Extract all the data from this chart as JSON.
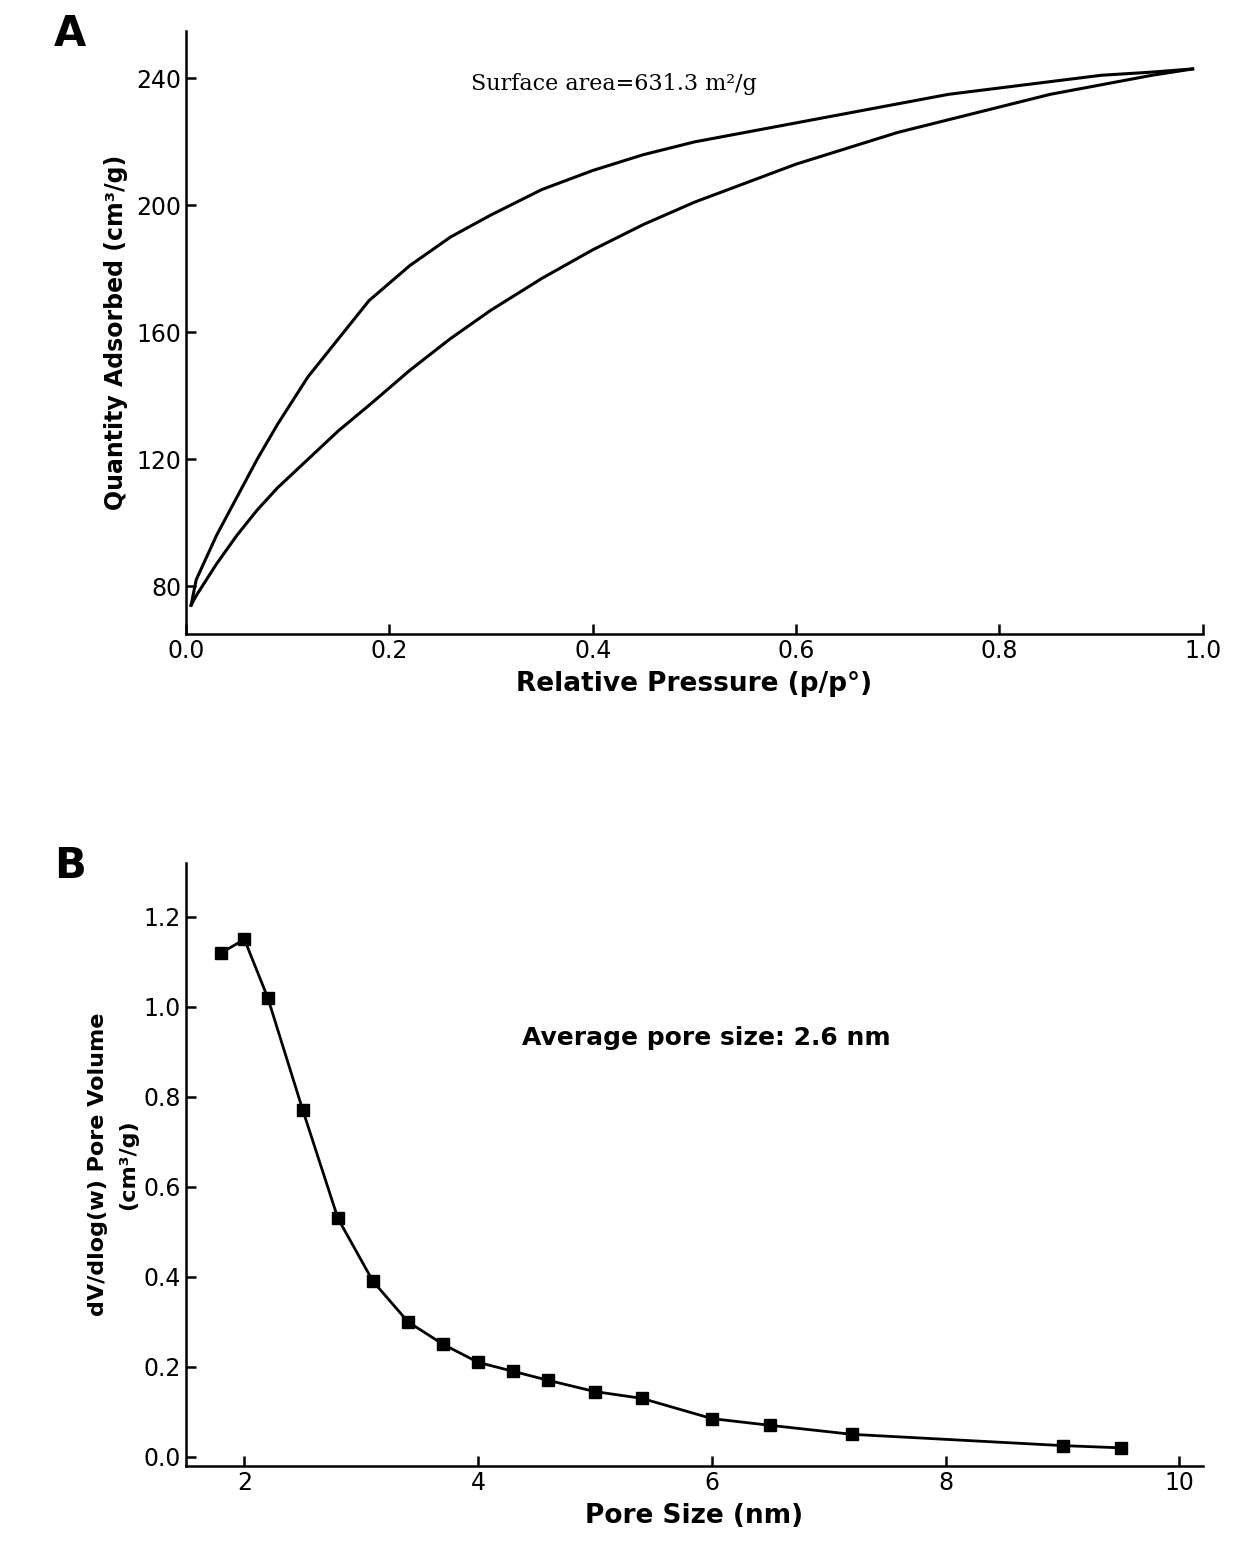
{
  "panel_A": {
    "label": "A",
    "annotation": "Surface area=631.3 m²/g",
    "xlabel": "Relative Pressure (p/p°)",
    "ylabel": "Quantity Adsorbed (cm³/g)",
    "xlim": [
      0.0,
      1.0
    ],
    "ylim": [
      65,
      255
    ],
    "yticks": [
      80,
      120,
      160,
      200,
      240
    ],
    "xticks": [
      0.0,
      0.2,
      0.4,
      0.6,
      0.8,
      1.0
    ],
    "adsorption_x": [
      0.005,
      0.01,
      0.02,
      0.03,
      0.05,
      0.07,
      0.09,
      0.12,
      0.15,
      0.18,
      0.22,
      0.26,
      0.3,
      0.35,
      0.4,
      0.45,
      0.5,
      0.55,
      0.6,
      0.65,
      0.7,
      0.75,
      0.8,
      0.85,
      0.9,
      0.95,
      0.99
    ],
    "adsorption_y": [
      74,
      77,
      82,
      87,
      96,
      104,
      111,
      120,
      129,
      137,
      148,
      158,
      167,
      177,
      186,
      194,
      201,
      207,
      213,
      218,
      223,
      227,
      231,
      235,
      238,
      241,
      243
    ],
    "desorption_x": [
      0.99,
      0.95,
      0.9,
      0.85,
      0.8,
      0.75,
      0.7,
      0.65,
      0.6,
      0.55,
      0.5,
      0.45,
      0.4,
      0.35,
      0.3,
      0.26,
      0.22,
      0.18,
      0.15,
      0.12,
      0.09,
      0.07,
      0.05,
      0.03,
      0.02,
      0.01,
      0.005
    ],
    "desorption_y": [
      243,
      242,
      241,
      239,
      237,
      235,
      232,
      229,
      226,
      223,
      220,
      216,
      211,
      205,
      197,
      190,
      181,
      170,
      158,
      146,
      131,
      120,
      108,
      96,
      89,
      82,
      74
    ]
  },
  "panel_B": {
    "label": "B",
    "annotation": "Average pore size: 2.6 nm",
    "xlabel": "Pore Size (nm)",
    "ylabel_line1": "dV/dlog(w) Pore Volume",
    "ylabel_line2": "(cm³/g)",
    "xlim": [
      1.5,
      10.2
    ],
    "ylim": [
      -0.02,
      1.32
    ],
    "yticks": [
      0.0,
      0.2,
      0.4,
      0.6,
      0.8,
      1.0,
      1.2
    ],
    "xticks": [
      2,
      4,
      6,
      8,
      10
    ],
    "pore_x": [
      1.8,
      2.0,
      2.2,
      2.5,
      2.8,
      3.1,
      3.4,
      3.7,
      4.0,
      4.3,
      4.6,
      5.0,
      5.4,
      6.0,
      6.5,
      7.2,
      9.0,
      9.5
    ],
    "pore_y": [
      1.12,
      1.15,
      1.02,
      0.77,
      0.53,
      0.39,
      0.3,
      0.25,
      0.21,
      0.19,
      0.17,
      0.145,
      0.13,
      0.085,
      0.07,
      0.05,
      0.025,
      0.02
    ]
  },
  "color": "#000000",
  "bg_color": "#ffffff"
}
